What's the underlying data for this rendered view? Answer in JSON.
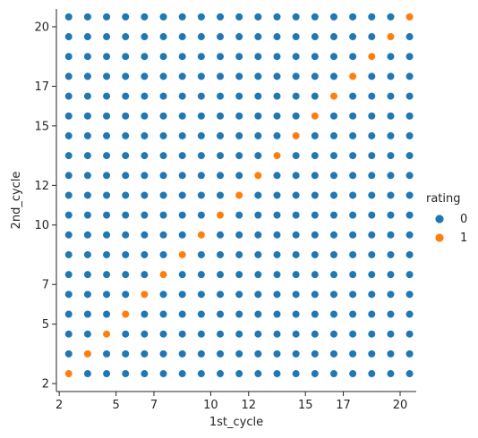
{
  "chart_data": {
    "type": "scatter",
    "title": "",
    "xlabel": "1st_cycle",
    "ylabel": "2nd_cycle",
    "xlim": [
      1.85,
      20.85
    ],
    "ylim": [
      1.6,
      20.9
    ],
    "xticks": [
      2,
      5,
      7,
      10,
      12,
      15,
      17,
      20
    ],
    "xtick_labels": [
      "2",
      "5",
      "7",
      "10",
      "12",
      "15",
      "17",
      "20"
    ],
    "yticks": [
      2,
      5,
      7,
      10,
      12,
      15,
      17,
      20
    ],
    "ytick_labels": [
      "2",
      "5",
      "7",
      "10",
      "12",
      "15",
      "17",
      "20"
    ],
    "grid": false,
    "legend": {
      "title": "rating",
      "placement": "right",
      "entries": [
        {
          "label": "0",
          "color": "#1f77b4"
        },
        {
          "label": "1",
          "color": "#ff7f0e"
        }
      ]
    },
    "grid_values": [
      2.5,
      3.5,
      4.5,
      5.5,
      6.5,
      7.5,
      8.5,
      9.5,
      10.5,
      11.5,
      12.5,
      13.5,
      14.5,
      15.5,
      16.5,
      17.5,
      18.5,
      19.5,
      20.5
    ],
    "rule": "rating = 1 when 1st_cycle equals 2nd_cycle, else 0",
    "series": [
      {
        "name": "0",
        "color": "#1f77b4",
        "rule": "x != y"
      },
      {
        "name": "1",
        "color": "#ff7f0e",
        "rule": "x == y"
      }
    ]
  }
}
